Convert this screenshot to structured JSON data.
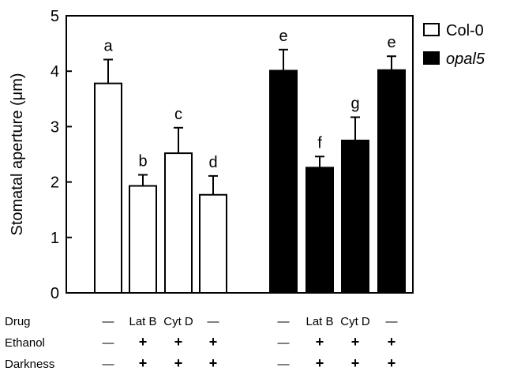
{
  "chart_data": {
    "type": "bar",
    "ylabel": "Stomatal aperture (μm)",
    "ylim": [
      0,
      5
    ],
    "yticks": [
      0,
      1,
      2,
      3,
      4,
      5
    ],
    "grid": false,
    "legend_position": "top-right",
    "legend": [
      {
        "label": "Col-0",
        "fill": "#ffffff",
        "italic": false
      },
      {
        "label": "opal5",
        "fill": "#000000",
        "italic": true
      }
    ],
    "series": [
      {
        "name": "Col-0",
        "fill": "#ffffff",
        "values": [
          3.78,
          1.93,
          2.52,
          1.77
        ],
        "errors": [
          0.43,
          0.2,
          0.46,
          0.34
        ],
        "letters": [
          "a",
          "b",
          "c",
          "d"
        ]
      },
      {
        "name": "opal5",
        "fill": "#000000",
        "values": [
          4.01,
          2.26,
          2.75,
          4.02
        ],
        "errors": [
          0.38,
          0.2,
          0.42,
          0.25
        ],
        "letters": [
          "e",
          "f",
          "g",
          "e"
        ]
      }
    ],
    "treatments": [
      {
        "label": "Drug",
        "values": [
          "—",
          "Lat B",
          "Cyt D",
          "—"
        ]
      },
      {
        "label": "Ethanol",
        "values": [
          "—",
          "+",
          "+",
          "+"
        ]
      },
      {
        "label": "Darkness",
        "values": [
          "—",
          "+",
          "+",
          "+"
        ]
      }
    ]
  }
}
